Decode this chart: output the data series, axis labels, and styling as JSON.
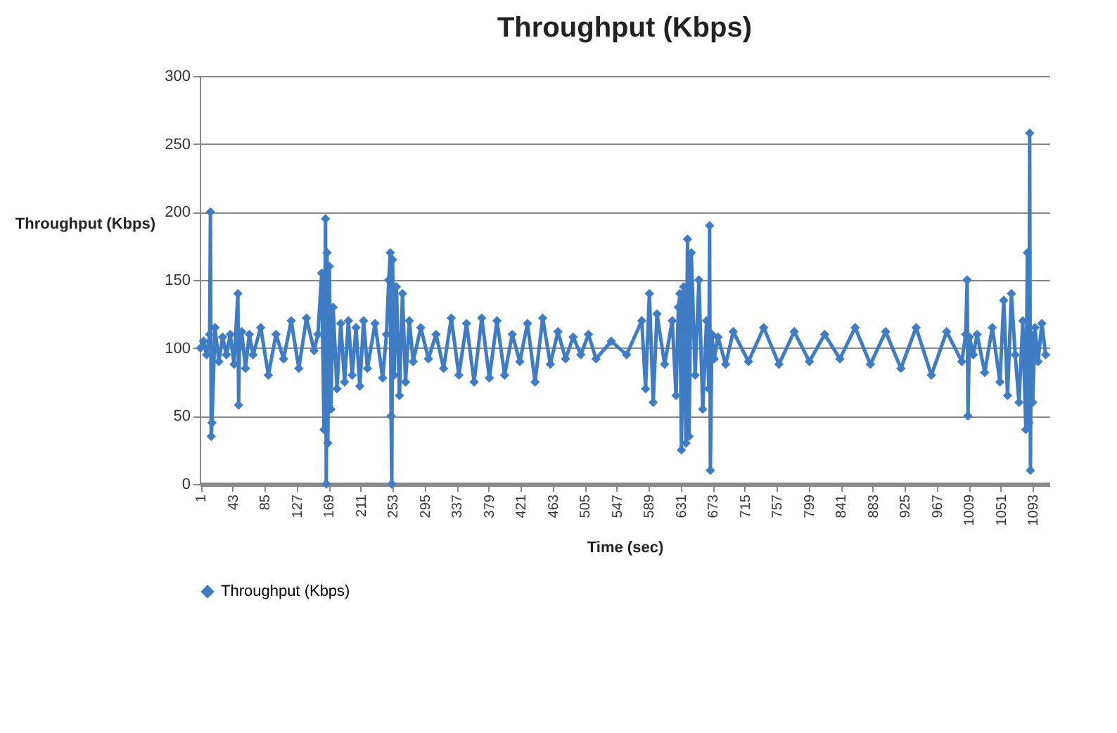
{
  "chart_data": {
    "type": "line",
    "title": "Throughput (Kbps)",
    "xlabel": "Time (sec)",
    "ylabel": "Throughput (Kbps)",
    "x": [
      1,
      5,
      9,
      13,
      14,
      15,
      16,
      20,
      25,
      30,
      35,
      40,
      45,
      50,
      51,
      52,
      55,
      60,
      65,
      70,
      80,
      90,
      100,
      110,
      120,
      130,
      140,
      150,
      155,
      160,
      163,
      165,
      166,
      167,
      168,
      170,
      172,
      175,
      180,
      185,
      190,
      195,
      200,
      205,
      210,
      215,
      220,
      230,
      240,
      245,
      248,
      250,
      251,
      252,
      253,
      255,
      258,
      262,
      266,
      270,
      275,
      280,
      290,
      300,
      310,
      320,
      330,
      340,
      350,
      360,
      370,
      380,
      390,
      400,
      410,
      420,
      430,
      440,
      450,
      460,
      470,
      480,
      490,
      500,
      510,
      520,
      540,
      560,
      580,
      585,
      590,
      595,
      600,
      610,
      620,
      625,
      628,
      630,
      632,
      635,
      638,
      640,
      642,
      645,
      650,
      655,
      660,
      665,
      668,
      669,
      670,
      672,
      675,
      680,
      690,
      700,
      720,
      740,
      760,
      780,
      800,
      820,
      840,
      860,
      880,
      900,
      920,
      940,
      960,
      980,
      1000,
      1005,
      1007,
      1008,
      1010,
      1015,
      1020,
      1030,
      1040,
      1050,
      1055,
      1060,
      1065,
      1070,
      1075,
      1080,
      1084,
      1086,
      1088,
      1089,
      1090,
      1091,
      1093,
      1096,
      1100,
      1105,
      1110
    ],
    "series": [
      {
        "name": "Throughput (Kbps)",
        "color": "#3f7cc4",
        "values": [
          100,
          105,
          95,
          110,
          200,
          35,
          45,
          115,
          90,
          108,
          95,
          110,
          88,
          140,
          58,
          100,
          112,
          85,
          110,
          95,
          115,
          80,
          110,
          92,
          120,
          85,
          122,
          98,
          110,
          155,
          40,
          195,
          0,
          170,
          30,
          160,
          55,
          130,
          70,
          118,
          75,
          120,
          80,
          115,
          72,
          120,
          85,
          118,
          78,
          110,
          150,
          170,
          50,
          0,
          165,
          80,
          145,
          65,
          140,
          75,
          120,
          90,
          115,
          92,
          110,
          85,
          122,
          80,
          118,
          75,
          122,
          78,
          120,
          80,
          110,
          90,
          118,
          75,
          122,
          88,
          112,
          92,
          108,
          95,
          110,
          92,
          105,
          95,
          120,
          70,
          140,
          60,
          125,
          88,
          120,
          65,
          130,
          140,
          25,
          145,
          30,
          180,
          35,
          170,
          80,
          150,
          55,
          120,
          70,
          190,
          10,
          110,
          92,
          108,
          88,
          112,
          90,
          115,
          88,
          112,
          90,
          110,
          92,
          115,
          88,
          112,
          85,
          115,
          80,
          112,
          90,
          110,
          150,
          50,
          108,
          95,
          110,
          82,
          115,
          75,
          135,
          65,
          140,
          95,
          60,
          120,
          40,
          170,
          45,
          258,
          10,
          110,
          60,
          115,
          90,
          118,
          95
        ]
      }
    ],
    "xlim": [
      0,
      1115
    ],
    "xticks": [
      1,
      43,
      85,
      127,
      169,
      211,
      253,
      295,
      337,
      379,
      421,
      463,
      505,
      547,
      589,
      631,
      673,
      715,
      757,
      799,
      841,
      883,
      925,
      967,
      1009,
      1051,
      1093
    ],
    "ylim": [
      0,
      300
    ],
    "yticks": [
      0,
      50,
      100,
      150,
      200,
      250,
      300
    ],
    "grid": "y",
    "legend": "bottom",
    "marker": "diamond",
    "line_style": "solid"
  }
}
